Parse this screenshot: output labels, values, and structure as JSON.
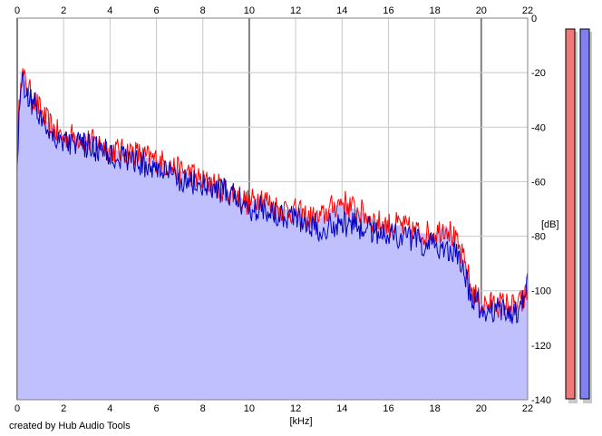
{
  "footer_credit": "created by Hub Audio Tools",
  "colors": {
    "background": "#ffffff",
    "fill": "#c0c0ff",
    "red_series": "#ff0000",
    "blue_series": "#0000c0",
    "grid_minor": "#c8c8c8",
    "grid_major": "#808080",
    "meter_left": "#f07878",
    "meter_right": "#8080f0"
  },
  "chart_data": {
    "type": "line",
    "xlabel": "[kHz]",
    "ylabel": "[dB]",
    "xlim": [
      0,
      22
    ],
    "ylim": [
      -140,
      0
    ],
    "x_ticks": [
      0,
      2,
      4,
      6,
      8,
      10,
      12,
      14,
      16,
      18,
      20,
      22
    ],
    "y_ticks": [
      0,
      -20,
      -40,
      -60,
      -80,
      -100,
      -120,
      -140
    ],
    "x_tick_labels": [
      "0",
      "2",
      "4",
      "6",
      "8",
      "10",
      "12",
      "14",
      "16",
      "18",
      "20",
      "22"
    ],
    "y_tick_labels": [
      "0",
      "-20",
      "-40",
      "-60",
      "-80",
      "-100",
      "-120",
      "-140"
    ],
    "grid": true,
    "series": [
      {
        "color": "#ff0000",
        "x": [
          0,
          0.15,
          0.4,
          0.8,
          1.2,
          1.6,
          2,
          2.5,
          3,
          3.5,
          4,
          4.5,
          5,
          5.5,
          6,
          6.5,
          7,
          7.5,
          8,
          8.5,
          9,
          9.5,
          10,
          10.5,
          11,
          11.5,
          12,
          12.5,
          13,
          13.5,
          14,
          14.5,
          15,
          15.5,
          16,
          16.5,
          17,
          17.5,
          18,
          18.5,
          19,
          19.3,
          19.6,
          20,
          20.5,
          21,
          21.5,
          21.8,
          22
        ],
        "y": [
          -52,
          -19,
          -25,
          -31,
          -37,
          -41,
          -44,
          -43,
          -45,
          -46,
          -48,
          -49,
          -49,
          -51,
          -52,
          -54,
          -56,
          -57,
          -60,
          -61,
          -63,
          -65,
          -68,
          -65,
          -69,
          -70,
          -71,
          -73,
          -74,
          -70,
          -67,
          -70,
          -72,
          -75,
          -76,
          -76,
          -78,
          -79,
          -79,
          -76,
          -84,
          -90,
          -100,
          -105,
          -105,
          -105,
          -106,
          -104,
          -100
        ]
      },
      {
        "color": "#0000c0",
        "x": [
          0,
          0.15,
          0.4,
          0.8,
          1.2,
          1.6,
          2,
          2.5,
          3,
          3.5,
          4,
          4.5,
          5,
          5.5,
          6,
          6.5,
          7,
          7.5,
          8,
          8.5,
          9,
          9.5,
          10,
          10.5,
          11,
          11.5,
          12,
          12.5,
          13,
          13.5,
          14,
          14.5,
          15,
          15.5,
          16,
          16.5,
          17,
          17.5,
          18,
          18.5,
          19,
          19.3,
          19.6,
          20,
          20.5,
          21,
          21.5,
          21.8,
          22
        ],
        "y": [
          -54,
          -22,
          -27,
          -33,
          -39,
          -43,
          -45,
          -46,
          -47,
          -48,
          -50,
          -51,
          -52,
          -54,
          -55,
          -57,
          -59,
          -60,
          -62,
          -63,
          -64,
          -66,
          -70,
          -69,
          -71,
          -72,
          -73,
          -75,
          -77,
          -76,
          -75,
          -76,
          -77,
          -78,
          -79,
          -80,
          -81,
          -83,
          -84,
          -84,
          -88,
          -95,
          -103,
          -107,
          -107,
          -107,
          -108,
          -104,
          -96
        ]
      }
    ]
  },
  "meters": [
    {
      "color": "#f07878",
      "level_db": 0
    },
    {
      "color": "#8080f0",
      "level_db": 0
    }
  ]
}
